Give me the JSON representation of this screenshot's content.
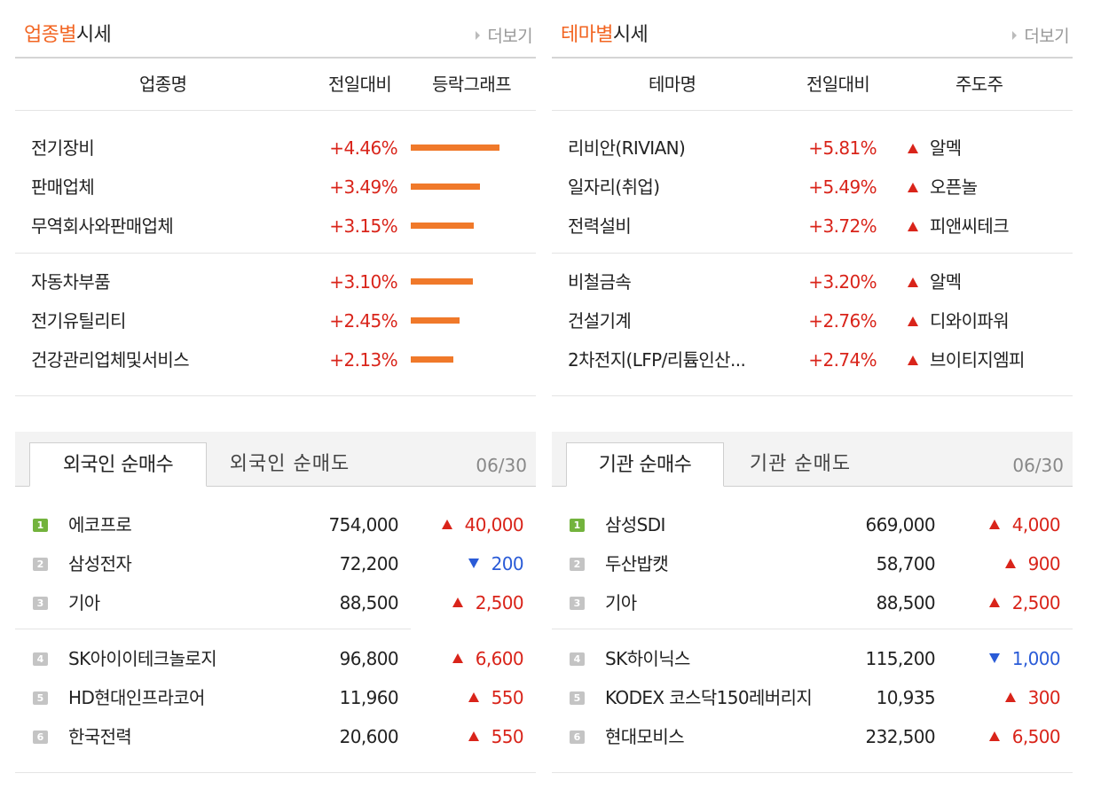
{
  "sector": {
    "title_accent": "업종별",
    "title_rest": "시세",
    "more": "더보기",
    "headers": [
      "업종명",
      "전일대비",
      "등락그래프"
    ],
    "rows": [
      {
        "name": "전기장비",
        "change": "+4.46%",
        "ratio": 4.46
      },
      {
        "name": "판매업체",
        "change": "+3.49%",
        "ratio": 3.49
      },
      {
        "name": "무역회사와판매업체",
        "change": "+3.15%",
        "ratio": 3.15
      },
      {
        "name": "자동차부품",
        "change": "+3.10%",
        "ratio": 3.1
      },
      {
        "name": "전기유틸리티",
        "change": "+2.45%",
        "ratio": 2.45
      },
      {
        "name": "건강관리업체및서비스",
        "change": "+2.13%",
        "ratio": 2.13
      }
    ]
  },
  "theme": {
    "title_accent": "테마별",
    "title_rest": "시세",
    "more": "더보기",
    "headers": [
      "테마명",
      "전일대비",
      "주도주"
    ],
    "rows": [
      {
        "name": "리비안(RIVIAN)",
        "change": "+5.81%",
        "leader": "알멕"
      },
      {
        "name": "일자리(취업)",
        "change": "+5.49%",
        "leader": "오픈놀"
      },
      {
        "name": "전력설비",
        "change": "+3.72%",
        "leader": "피앤씨테크"
      },
      {
        "name": "비철금속",
        "change": "+3.20%",
        "leader": "알멕"
      },
      {
        "name": "건설기계",
        "change": "+2.76%",
        "leader": "디와이파워"
      },
      {
        "name": "2차전지(LFP/리튬인산...",
        "change": "+2.74%",
        "leader": "브이티지엠피"
      }
    ]
  },
  "foreign": {
    "tab_active": "외국인 순매수",
    "tab_inactive": "외국인 순매도",
    "date": "06/30",
    "rows": [
      {
        "rank": "1",
        "name": "에코프로",
        "price": "754,000",
        "dir": "up",
        "change": "40,000"
      },
      {
        "rank": "2",
        "name": "삼성전자",
        "price": "72,200",
        "dir": "dn",
        "change": "200"
      },
      {
        "rank": "3",
        "name": "기아",
        "price": "88,500",
        "dir": "up",
        "change": "2,500"
      },
      {
        "rank": "4",
        "name": "SK아이이테크놀로지",
        "price": "96,800",
        "dir": "up",
        "change": "6,600"
      },
      {
        "rank": "5",
        "name": "HD현대인프라코어",
        "price": "11,960",
        "dir": "up",
        "change": "550"
      },
      {
        "rank": "6",
        "name": "한국전력",
        "price": "20,600",
        "dir": "up",
        "change": "550"
      }
    ]
  },
  "institution": {
    "tab_active": "기관 순매수",
    "tab_inactive": "기관 순매도",
    "date": "06/30",
    "rows": [
      {
        "rank": "1",
        "name": "삼성SDI",
        "price": "669,000",
        "dir": "up",
        "change": "4,000"
      },
      {
        "rank": "2",
        "name": "두산밥캣",
        "price": "58,700",
        "dir": "up",
        "change": "900"
      },
      {
        "rank": "3",
        "name": "기아",
        "price": "88,500",
        "dir": "up",
        "change": "2,500"
      },
      {
        "rank": "4",
        "name": "SK하이닉스",
        "price": "115,200",
        "dir": "dn",
        "change": "1,000"
      },
      {
        "rank": "5",
        "name": "KODEX 코스닥150레버리지",
        "price": "10,935",
        "dir": "up",
        "change": "300"
      },
      {
        "rank": "6",
        "name": "현대모비스",
        "price": "232,500",
        "dir": "up",
        "change": "6,500"
      }
    ]
  },
  "colors": {
    "accent": "#f26522",
    "up": "#d9241a",
    "down": "#2a5bd7",
    "bar": "#f0792a",
    "rank_first": "#73b33d",
    "rank_other": "#c4c4c4"
  }
}
